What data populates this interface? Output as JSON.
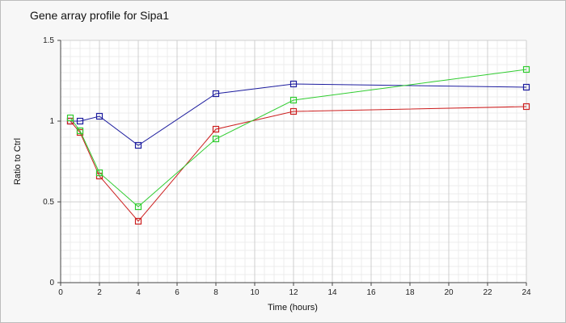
{
  "chart_data": {
    "type": "line",
    "title": "Gene array profile for Sipa1",
    "xlabel": "Time (hours)",
    "ylabel": "Ratio to Ctrl",
    "xlim": [
      0,
      24
    ],
    "ylim": [
      0,
      1.5
    ],
    "x_ticks": [
      0,
      2,
      4,
      6,
      8,
      10,
      12,
      14,
      16,
      18,
      20,
      22,
      24
    ],
    "y_ticks": [
      0,
      0.5,
      1,
      1.5
    ],
    "y_tick_labels": [
      "0",
      "0.5",
      "1",
      "1.5"
    ],
    "grid": true,
    "marker": "square",
    "series": [
      {
        "color": "#1c1c9e",
        "x": [
          0.5,
          1,
          2,
          4,
          8,
          12,
          24
        ],
        "values": [
          1.0,
          1.0,
          1.03,
          0.85,
          1.17,
          1.23,
          1.21
        ]
      },
      {
        "color": "#cc1f1f",
        "x": [
          0.5,
          1,
          2,
          4,
          8,
          12,
          24
        ],
        "values": [
          1.0,
          0.93,
          0.66,
          0.38,
          0.95,
          1.06,
          1.09
        ]
      },
      {
        "color": "#2ecc2e",
        "x": [
          0.5,
          1,
          2,
          4,
          8,
          12,
          24
        ],
        "values": [
          1.02,
          0.94,
          0.68,
          0.47,
          0.89,
          1.13,
          1.32
        ]
      }
    ]
  }
}
